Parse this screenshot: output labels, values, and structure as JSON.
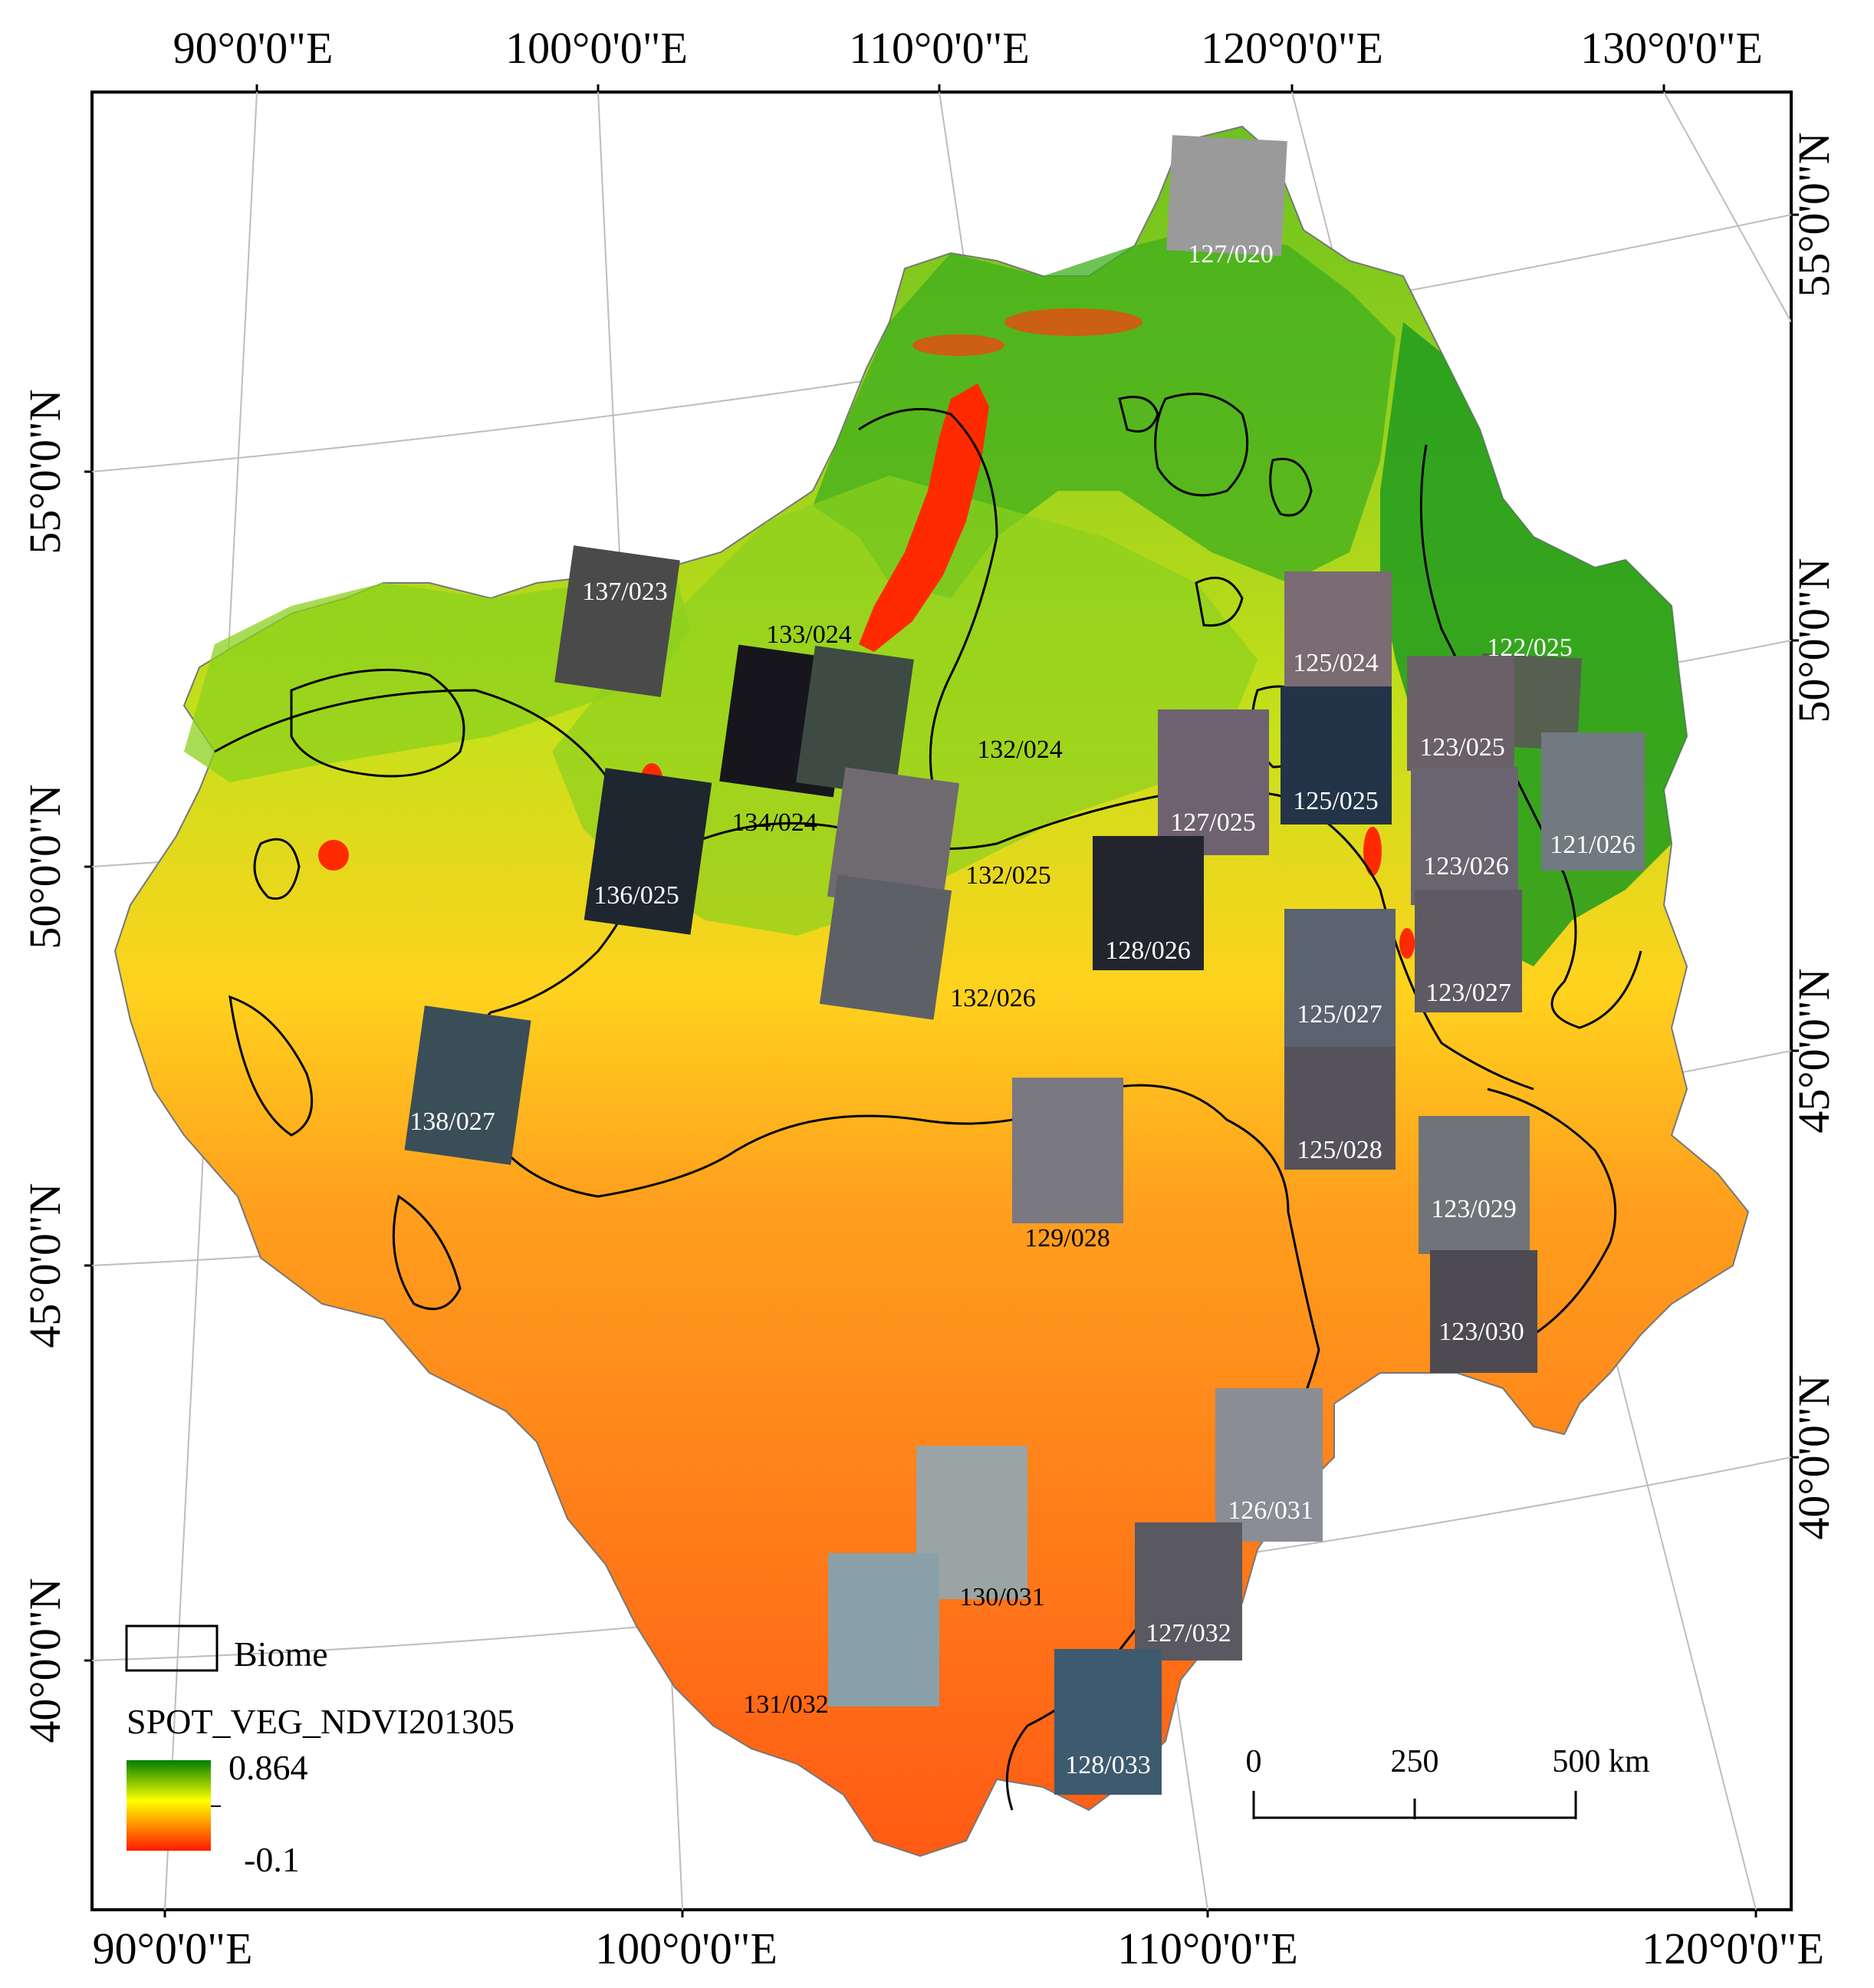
{
  "graticule": {
    "top": [
      "90°0'0\"E",
      "100°0'0\"E",
      "110°0'0\"E",
      "120°0'0\"E",
      "130°0'0\"E"
    ],
    "bottom": [
      "90°0'0\"E",
      "100°0'0\"E",
      "110°0'0\"E",
      "120°0'0\"E"
    ],
    "left": [
      "55°0'0\"N",
      "50°0'0\"N",
      "45°0'0\"N",
      "40°0'0\"N"
    ],
    "right": [
      "55°0'0\"N",
      "50°0'0\"N",
      "45°0'0\"N",
      "40°0'0\"N"
    ]
  },
  "scenes": [
    {
      "label": "127/020",
      "label_color": "#ffffff"
    },
    {
      "label": "137/023",
      "label_color": "#ffffff"
    },
    {
      "label": "133/024",
      "label_color": "#000000"
    },
    {
      "label": "134/024",
      "label_color": "#000000"
    },
    {
      "label": "132/024",
      "label_color": "#000000"
    },
    {
      "label": "136/025",
      "label_color": "#ffffff"
    },
    {
      "label": "132/025",
      "label_color": "#000000"
    },
    {
      "label": "132/026",
      "label_color": "#000000"
    },
    {
      "label": "125/024",
      "label_color": "#ffffff"
    },
    {
      "label": "122/025",
      "label_color": "#ffffff"
    },
    {
      "label": "127/025",
      "label_color": "#ffffff"
    },
    {
      "label": "125/025",
      "label_color": "#ffffff"
    },
    {
      "label": "123/025",
      "label_color": "#ffffff"
    },
    {
      "label": "121/026",
      "label_color": "#ffffff"
    },
    {
      "label": "123/026",
      "label_color": "#ffffff"
    },
    {
      "label": "128/026",
      "label_color": "#ffffff"
    },
    {
      "label": "123/027",
      "label_color": "#ffffff"
    },
    {
      "label": "125/027",
      "label_color": "#ffffff"
    },
    {
      "label": "138/027",
      "label_color": "#ffffff"
    },
    {
      "label": "125/028",
      "label_color": "#ffffff"
    },
    {
      "label": "129/028",
      "label_color": "#000000"
    },
    {
      "label": "123/029",
      "label_color": "#ffffff"
    },
    {
      "label": "123/030",
      "label_color": "#ffffff"
    },
    {
      "label": "126/031",
      "label_color": "#ffffff"
    },
    {
      "label": "130/031",
      "label_color": "#000000"
    },
    {
      "label": "127/032",
      "label_color": "#ffffff"
    },
    {
      "label": "131/032",
      "label_color": "#000000"
    },
    {
      "label": "128/033",
      "label_color": "#ffffff"
    }
  ],
  "legend": {
    "biome_label": "Biome",
    "raster_title": "SPOT_VEG_NDVI201305",
    "max_value": "0.864",
    "min_value": "-0.1",
    "ramp_colors": [
      "#008000",
      "#ffff00",
      "#ff0000"
    ]
  },
  "scale_bar": {
    "ticks": [
      "0",
      "250",
      "500 km"
    ]
  },
  "colors": {
    "desert": "#ff6a1a",
    "steppe": "#ffd21e",
    "forest": "#1e9b1e",
    "lake": "#ff2a00"
  }
}
